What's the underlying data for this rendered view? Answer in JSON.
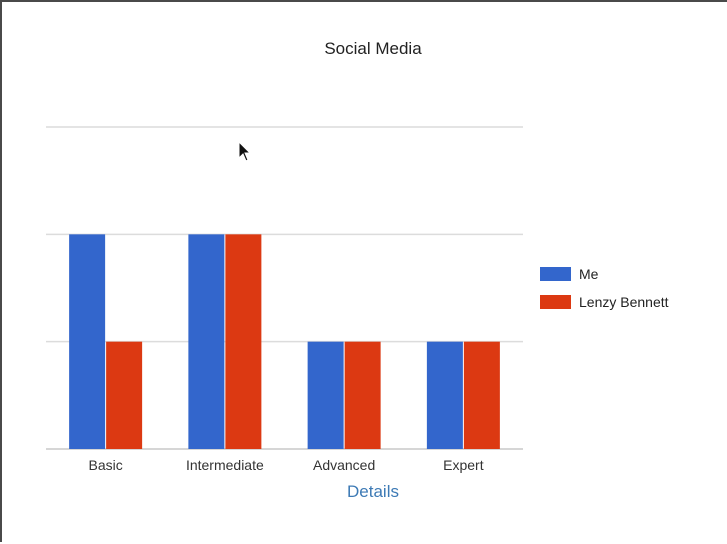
{
  "chart_data": {
    "type": "bar",
    "title": "Social Media",
    "xlabel": "Details",
    "ylabel": "",
    "categories": [
      "Basic",
      "Intermediate",
      "Advanced",
      "Expert"
    ],
    "series": [
      {
        "name": "Me",
        "values": [
          2,
          2,
          1,
          1
        ],
        "color": "#3366cc"
      },
      {
        "name": "Lenzy Bennett",
        "values": [
          1,
          2,
          1,
          1
        ],
        "color": "#dc3912"
      }
    ],
    "ylim": [
      0,
      3
    ],
    "grid": true,
    "legend": "right"
  },
  "colors": {
    "xlabel": "#3d7ab5",
    "gridline": "#dcdcdc",
    "text": "#222222"
  },
  "icons": {
    "cursor": "arrow-cursor-icon"
  }
}
